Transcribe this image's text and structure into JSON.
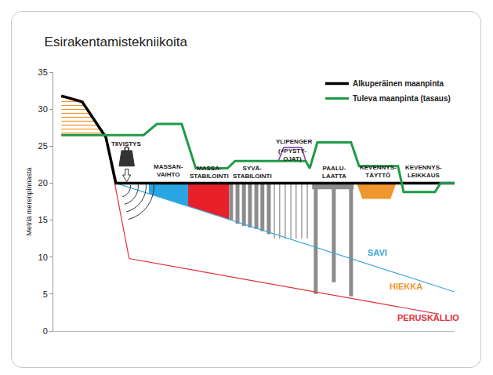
{
  "chart_data": {
    "type": "line",
    "title": "Esirakentamistekniikoita",
    "y_label": "Metriä merenpinnasta",
    "xlim": [
      0,
      100
    ],
    "ylim": [
      0,
      35
    ],
    "yticks": [
      0,
      5,
      10,
      15,
      20,
      25,
      30,
      35
    ],
    "tick_labels": "y",
    "grid": false,
    "legend": "top right",
    "series": [
      {
        "name": "Alkuperäinen maanpinta",
        "color": "#000000",
        "x": [
          2,
          7.2,
          13.1,
          15.6,
          100
        ],
        "values": [
          31.8,
          31.0,
          26.2,
          20,
          20
        ]
      },
      {
        "name": "Tuleva maanpinta (tasaus)",
        "color": "#1e9b47",
        "x": [
          2,
          22.5,
          25.8,
          32.0,
          35.5,
          43.4,
          45.3,
          62.9,
          63.9,
          65.8,
          74.2,
          76.2,
          85.9,
          87.3,
          95.1,
          96.5,
          100
        ],
        "values": [
          26.5,
          26.5,
          28,
          28,
          22,
          22,
          23,
          23,
          22,
          25.5,
          25.5,
          22.3,
          22.3,
          18.8,
          18.8,
          20,
          20
        ]
      }
    ],
    "layers": [
      {
        "label": "SAVI",
        "color": "#3ba7dc",
        "x": [
          15.6,
          100
        ],
        "values": [
          20,
          5.3
        ],
        "label_x": 77.9,
        "label_y": 10.6
      },
      {
        "label": "HIEKKA",
        "color": "#f0962e",
        "label_x": 83.4,
        "label_y": 6.0
      },
      {
        "label": "PERUSKALLIO",
        "color": "#e0303c",
        "x": [
          13.1,
          18.9,
          96.1
        ],
        "values": [
          26.2,
          9.8,
          2.3
        ],
        "label_x": 85.4,
        "label_y": 1.8
      }
    ],
    "regions": [
      {
        "color": "#f0962e",
        "line_style": "hatched",
        "x": [
          2,
          7.2,
          12.8,
          2
        ],
        "values": [
          31.8,
          31.0,
          26.5,
          26.5
        ]
      },
      {
        "color": "#29a6e1",
        "line_style": "filled",
        "x": [
          23.8,
          33.6,
          33.6,
          23.8
        ],
        "values": [
          20,
          20,
          16.9,
          18.6
        ]
      },
      {
        "color": "#e8202a",
        "line_style": "filled",
        "x": [
          33.6,
          43.75,
          43.75,
          33.6
        ],
        "values": [
          20,
          20,
          15.1,
          16.9
        ]
      },
      {
        "color": "#8e44ad",
        "line_style": "outline",
        "x": [
          56.1,
          57.4,
          61.9,
          62.9
        ],
        "values": [
          23,
          24.8,
          24.8,
          23
        ]
      },
      {
        "color": "#8c8c8c",
        "line_style": "filled",
        "x": [
          64.5,
          74.8,
          74.8,
          64.5
        ],
        "values": [
          20,
          20,
          19.2,
          19.2
        ]
      },
      {
        "color": "#f0962e",
        "line_style": "filled",
        "x": [
          75.6,
          85.4,
          84.0,
          77.0
        ],
        "values": [
          20,
          20,
          17.9,
          17.9
        ]
      }
    ],
    "columns": [
      {
        "color": "#8c8c8c",
        "marker": "thick",
        "top": 20,
        "x": [
          44.3,
          45.9,
          47.5,
          49.0,
          50.6,
          52.1,
          53.7
        ],
        "bottom": [
          15.0,
          14.5,
          14.2,
          14.0,
          13.8,
          13.5,
          13.1
        ]
      },
      {
        "color": "#a0a0a0",
        "marker": "thin",
        "top": 20,
        "x": [
          55.1,
          56.4,
          57.8,
          59.2,
          60.5,
          61.9,
          63.3
        ],
        "bottom": [
          12.5,
          12.5,
          12.5,
          12.5,
          12.5,
          12.5,
          12.5
        ]
      },
      {
        "color": "#8c8c8c",
        "marker": "thick",
        "top": 19.2,
        "x": [
          65.4,
          69.9,
          74.2
        ],
        "bottom": [
          5.0,
          6.6,
          4.7
        ]
      }
    ],
    "annotations": [
      {
        "text": "TIIVISTYS",
        "x": 18.2,
        "y": 25.3
      },
      {
        "text": "MASSAN-\nVAIHTO",
        "x": 28.7,
        "y": 21.7
      },
      {
        "text": "MASSA-\nSTABILOINTI",
        "x": 38.9,
        "y": 21.5
      },
      {
        "text": "SYVÄ-\nSTABILOINTI",
        "x": 49.6,
        "y": 21.5
      },
      {
        "text": "YLIPENGER",
        "x": 60.0,
        "y": 25.6
      },
      {
        "text": "(+PYSTY-\nOJAT)",
        "x": 59.6,
        "y": 23.8
      },
      {
        "text": "PAALU-\nLAATTA",
        "x": 70.1,
        "y": 21.5
      },
      {
        "text": "KEVENNYS-\nTÄYTTÖ",
        "x": 80.9,
        "y": 21.6
      },
      {
        "text": "KEVENNYS-\nLEIKKAUS",
        "x": 92.2,
        "y": 21.6
      }
    ]
  }
}
